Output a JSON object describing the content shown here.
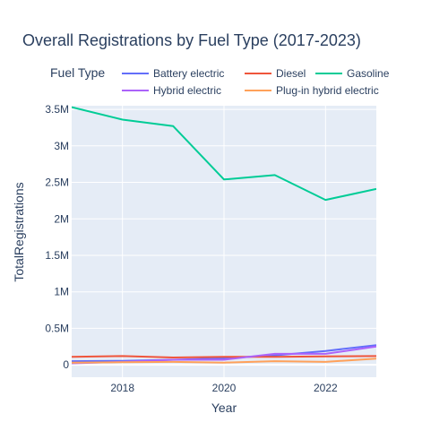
{
  "chart_data": {
    "type": "line",
    "title": "Overall Registrations by Fuel Type (2017-2023)",
    "xlabel": "Year",
    "ylabel": "TotalRegistrations",
    "legend_title": "Fuel Type",
    "legend_placement": "top",
    "grid": true,
    "xlim": [
      2017,
      2023
    ],
    "ylim": [
      -170000,
      3550000
    ],
    "x_ticks": [
      2018,
      2020,
      2022
    ],
    "x_tick_labels": [
      "2018",
      "2020",
      "2022"
    ],
    "y_ticks": [
      0,
      500000,
      1000000,
      1500000,
      2000000,
      2500000,
      3000000,
      3500000
    ],
    "y_tick_labels": [
      "0",
      "0.5M",
      "1M",
      "1.5M",
      "2M",
      "2.5M",
      "3M",
      "3.5M"
    ],
    "x": [
      2017,
      2018,
      2019,
      2020,
      2021,
      2022,
      2023
    ],
    "series": [
      {
        "name": "Battery electric",
        "color": "#636efa",
        "values": [
          50000,
          55000,
          70000,
          90000,
          130000,
          190000,
          270000
        ]
      },
      {
        "name": "Diesel",
        "color": "#ef553b",
        "values": [
          110000,
          120000,
          100000,
          110000,
          110000,
          115000,
          120000
        ]
      },
      {
        "name": "Gasoline",
        "color": "#00cc96",
        "values": [
          3530000,
          3360000,
          3270000,
          2540000,
          2600000,
          2260000,
          2410000
        ]
      },
      {
        "name": "Hybrid electric",
        "color": "#ab63fa",
        "values": [
          20000,
          40000,
          70000,
          70000,
          150000,
          150000,
          250000
        ]
      },
      {
        "name": "Plug-in hybrid electric",
        "color": "#ffa15a",
        "values": [
          30000,
          35000,
          40000,
          30000,
          50000,
          40000,
          85000
        ]
      }
    ]
  }
}
